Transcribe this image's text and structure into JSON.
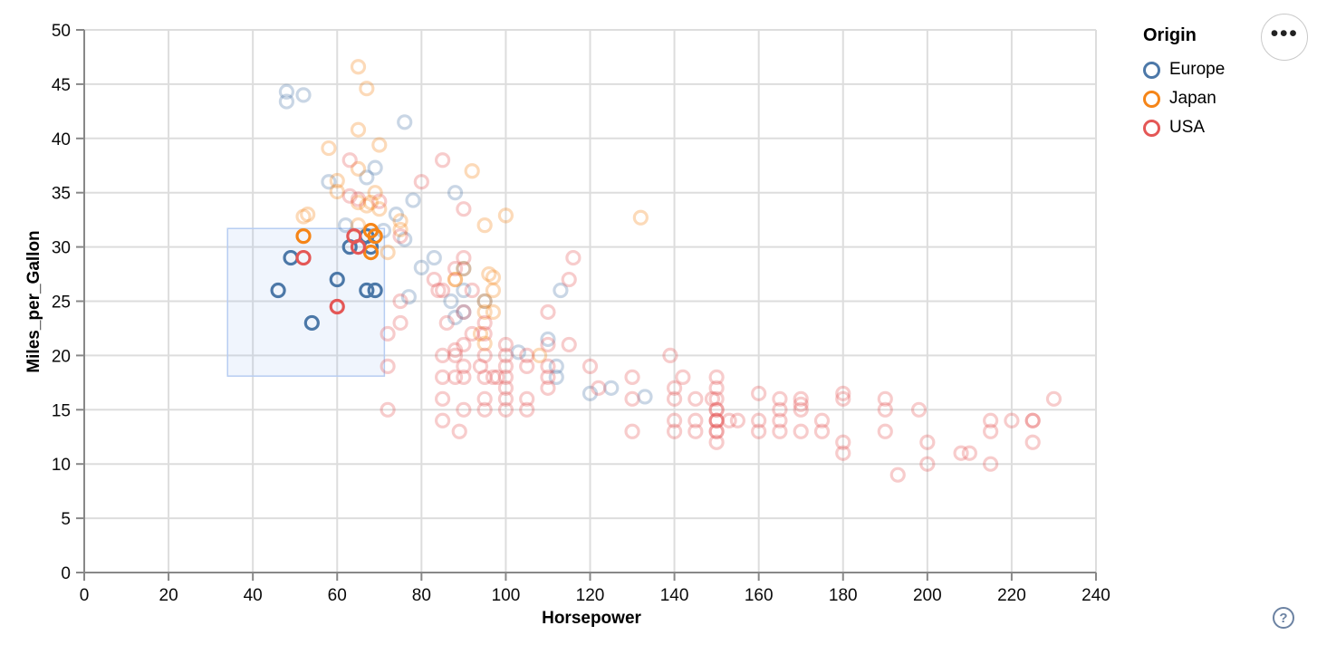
{
  "legend": {
    "title": "Origin",
    "items": [
      {
        "label": "Europe",
        "color": "#4c78a8"
      },
      {
        "label": "Japan",
        "color": "#f58518"
      },
      {
        "label": "USA",
        "color": "#e45756"
      }
    ]
  },
  "toolbar": {
    "menu_icon": "•••"
  },
  "help": {
    "icon": "?"
  },
  "chart_data": {
    "type": "scatter",
    "title": "",
    "xlabel": "Horsepower",
    "ylabel": "Miles_per_Gallon",
    "xlim": [
      0,
      240
    ],
    "ylim": [
      0,
      50
    ],
    "x_ticks": [
      0,
      20,
      40,
      60,
      80,
      100,
      120,
      140,
      160,
      180,
      200,
      220,
      240
    ],
    "y_ticks": [
      0,
      5,
      10,
      15,
      20,
      25,
      30,
      35,
      40,
      45,
      50
    ],
    "grid": true,
    "legend_position": "top-right",
    "grid_color": "#dddddd",
    "axis_color": "#888888",
    "label_color": "#0a0a0a",
    "unselected_opacity": 0.3,
    "selected_opacity": 1.0,
    "point_radius": 7,
    "point_stroke_width": 3.2,
    "brush": {
      "x": [
        34,
        71.2
      ],
      "y": [
        18.1,
        31.7
      ],
      "fill": "rgba(130,170,240,0.12)",
      "stroke": "#b7cdf2"
    },
    "series": [
      {
        "name": "Europe",
        "color": "#4c78a8",
        "points": [
          [
            48,
            43.4
          ],
          [
            48,
            44.3
          ],
          [
            52,
            44
          ],
          [
            76,
            41.5
          ],
          [
            67,
            36.4
          ],
          [
            58,
            36
          ],
          [
            88,
            35
          ],
          [
            78,
            34.3
          ],
          [
            69,
            37.3
          ],
          [
            74,
            33
          ],
          [
            71,
            31.5
          ],
          [
            62,
            32
          ],
          [
            76,
            30.7
          ],
          [
            83,
            29
          ],
          [
            80,
            28.1
          ],
          [
            90,
            28
          ],
          [
            90,
            26
          ],
          [
            77,
            25.4
          ],
          [
            87,
            25
          ],
          [
            95,
            25
          ],
          [
            90,
            24
          ],
          [
            88,
            23.5
          ],
          [
            113,
            26
          ],
          [
            110,
            21.5
          ],
          [
            103,
            20.3
          ],
          [
            112,
            19
          ],
          [
            112,
            18
          ],
          [
            125,
            17
          ],
          [
            120,
            16.5
          ],
          [
            133,
            16.2
          ]
        ],
        "selected_points": [
          [
            46,
            26
          ],
          [
            49,
            29
          ],
          [
            54,
            23
          ],
          [
            60,
            27
          ],
          [
            63,
            30
          ],
          [
            67,
            31
          ],
          [
            68,
            30
          ],
          [
            67,
            26
          ],
          [
            69,
            26
          ]
        ]
      },
      {
        "name": "Japan",
        "color": "#f58518",
        "points": [
          [
            65,
            46.6
          ],
          [
            67,
            44.6
          ],
          [
            65,
            40.8
          ],
          [
            70,
            39.4
          ],
          [
            58,
            39.1
          ],
          [
            65,
            37.2
          ],
          [
            92,
            37
          ],
          [
            60,
            36.1
          ],
          [
            60,
            35.1
          ],
          [
            69,
            35
          ],
          [
            68,
            34.1
          ],
          [
            65,
            34.1
          ],
          [
            67,
            33.8
          ],
          [
            70,
            33.5
          ],
          [
            53,
            33
          ],
          [
            52,
            32.8
          ],
          [
            100,
            32.9
          ],
          [
            132,
            32.7
          ],
          [
            95,
            32
          ],
          [
            65,
            32
          ],
          [
            75,
            32.4
          ],
          [
            75,
            31.6
          ],
          [
            72,
            29.5
          ],
          [
            90,
            28
          ],
          [
            96,
            27.5
          ],
          [
            97,
            27.2
          ],
          [
            88,
            27
          ],
          [
            88,
            27
          ],
          [
            97,
            26
          ],
          [
            95,
            25
          ],
          [
            95,
            24
          ],
          [
            97,
            24
          ],
          [
            94,
            22
          ],
          [
            95,
            21.1
          ],
          [
            108,
            20
          ]
        ],
        "selected_points": [
          [
            52,
            31
          ],
          [
            68,
            31.5
          ],
          [
            69,
            31
          ],
          [
            68,
            29.5
          ]
        ]
      },
      {
        "name": "USA",
        "color": "#e45756",
        "points": [
          [
            230,
            16
          ],
          [
            225,
            14
          ],
          [
            225,
            14
          ],
          [
            225,
            12
          ],
          [
            220,
            14
          ],
          [
            215,
            14
          ],
          [
            215,
            13
          ],
          [
            215,
            10
          ],
          [
            210,
            11
          ],
          [
            208,
            11
          ],
          [
            200,
            12
          ],
          [
            200,
            10
          ],
          [
            198,
            15
          ],
          [
            193,
            9
          ],
          [
            190,
            16
          ],
          [
            190,
            15
          ],
          [
            190,
            13
          ],
          [
            180,
            16.5
          ],
          [
            180,
            16
          ],
          [
            180,
            12
          ],
          [
            180,
            11
          ],
          [
            175,
            14
          ],
          [
            175,
            13
          ],
          [
            170,
            16
          ],
          [
            170,
            15.5
          ],
          [
            170,
            15
          ],
          [
            170,
            13
          ],
          [
            165,
            16
          ],
          [
            165,
            15
          ],
          [
            165,
            14
          ],
          [
            165,
            13
          ],
          [
            160,
            16.5
          ],
          [
            160,
            14
          ],
          [
            160,
            13
          ],
          [
            155,
            14
          ],
          [
            153,
            14
          ],
          [
            150,
            18
          ],
          [
            150,
            17
          ],
          [
            150,
            16
          ],
          [
            150,
            15
          ],
          [
            150,
            15
          ],
          [
            150,
            14
          ],
          [
            150,
            14
          ],
          [
            150,
            14
          ],
          [
            150,
            13
          ],
          [
            150,
            13
          ],
          [
            150,
            12
          ],
          [
            149,
            16
          ],
          [
            145,
            16
          ],
          [
            145,
            14
          ],
          [
            145,
            13
          ],
          [
            142,
            18
          ],
          [
            140,
            17
          ],
          [
            140,
            16
          ],
          [
            140,
            14
          ],
          [
            140,
            13
          ],
          [
            139,
            20
          ],
          [
            130,
            18
          ],
          [
            130,
            16
          ],
          [
            130,
            13
          ],
          [
            122,
            17
          ],
          [
            120,
            19
          ],
          [
            116,
            29
          ],
          [
            115,
            27
          ],
          [
            115,
            21
          ],
          [
            110,
            24
          ],
          [
            110,
            21
          ],
          [
            110,
            19
          ],
          [
            110,
            18
          ],
          [
            110,
            17
          ],
          [
            105,
            20
          ],
          [
            105,
            19
          ],
          [
            105,
            16
          ],
          [
            105,
            15
          ],
          [
            100,
            21
          ],
          [
            100,
            20
          ],
          [
            100,
            19
          ],
          [
            100,
            18
          ],
          [
            100,
            17
          ],
          [
            100,
            16
          ],
          [
            100,
            15
          ],
          [
            98,
            18
          ],
          [
            97,
            18
          ],
          [
            95,
            23
          ],
          [
            95,
            22
          ],
          [
            95,
            20
          ],
          [
            95,
            18
          ],
          [
            95,
            16
          ],
          [
            95,
            15
          ],
          [
            94,
            19
          ],
          [
            92,
            26
          ],
          [
            92,
            22
          ],
          [
            90,
            33.5
          ],
          [
            90,
            29
          ],
          [
            90,
            24
          ],
          [
            90,
            21
          ],
          [
            90,
            19
          ],
          [
            90,
            18
          ],
          [
            90,
            15
          ],
          [
            89,
            13
          ],
          [
            88,
            28
          ],
          [
            88,
            20.5
          ],
          [
            88,
            20
          ],
          [
            88,
            18
          ],
          [
            86,
            23
          ],
          [
            85,
            38
          ],
          [
            85,
            26
          ],
          [
            85,
            20
          ],
          [
            85,
            18
          ],
          [
            85,
            16
          ],
          [
            85,
            14
          ],
          [
            84,
            26
          ],
          [
            83,
            27
          ],
          [
            80,
            36
          ],
          [
            75,
            31
          ],
          [
            75,
            25
          ],
          [
            75,
            23
          ],
          [
            72,
            22
          ],
          [
            72,
            19
          ],
          [
            72,
            15
          ],
          [
            70,
            34.2
          ],
          [
            65,
            34.4
          ],
          [
            63,
            38
          ],
          [
            63,
            34.7
          ]
        ],
        "selected_points": [
          [
            52,
            29
          ],
          [
            64,
            31
          ],
          [
            65,
            30
          ],
          [
            60,
            24.5
          ]
        ]
      }
    ]
  }
}
